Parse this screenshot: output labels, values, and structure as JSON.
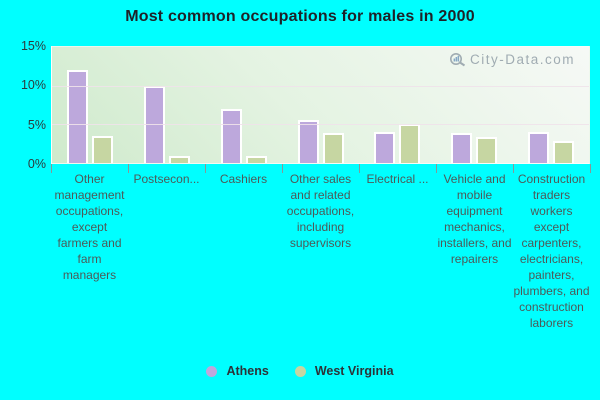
{
  "title": "Most common occupations for males in 2000",
  "watermark": {
    "text": "City-Data.com",
    "icon": "magnifier-icon"
  },
  "y_axis": {
    "tick_labels": [
      "15%",
      "10%",
      "5%",
      "0%"
    ]
  },
  "legend": {
    "entries": [
      "Athens",
      "West Virginia"
    ]
  },
  "colors": {
    "page_background": "#00ffff",
    "athens_bar": "#bda8dc",
    "west_virginia_bar": "#c6d6a2",
    "bar_border": "#ffffff",
    "gridline": "#f0e2ea",
    "title_text": "#1e2228",
    "y_axis_text": "#2d3a3c",
    "x_axis_text": "#4d5a58",
    "legend_text": "#2c3338",
    "watermark_text": "#98a4ac",
    "plot_gradient_top_right": "#f6f9f6",
    "plot_gradient_bottom_left": "#cfeacc"
  },
  "chart_data": {
    "type": "bar",
    "title": "Most common occupations for males in 2000",
    "unit": "percent of males",
    "categories": [
      "Other management occupations, except farmers and farm managers",
      "Postsecon...",
      "Cashiers",
      "Other sales and related occupations, including supervisors",
      "Electrical ...",
      "Vehicle and mobile equipment mechanics, installers, and repairers",
      "Construction traders workers except carpenters, electricians, painters, plumbers, and construction laborers"
    ],
    "series": [
      {
        "name": "Athens",
        "color": "#bda8dc",
        "values": [
          12.0,
          10.0,
          7.0,
          5.5,
          4.0,
          3.9,
          4.0
        ]
      },
      {
        "name": "West Virginia",
        "color": "#c6d6a2",
        "values": [
          3.5,
          0.9,
          0.9,
          3.9,
          5.1,
          3.3,
          2.8
        ]
      }
    ],
    "ylim": [
      0,
      15
    ],
    "yticks": [
      "15%",
      "10%",
      "5%",
      "0%"
    ],
    "grid": "horizontal",
    "legend_position": "bottom"
  }
}
